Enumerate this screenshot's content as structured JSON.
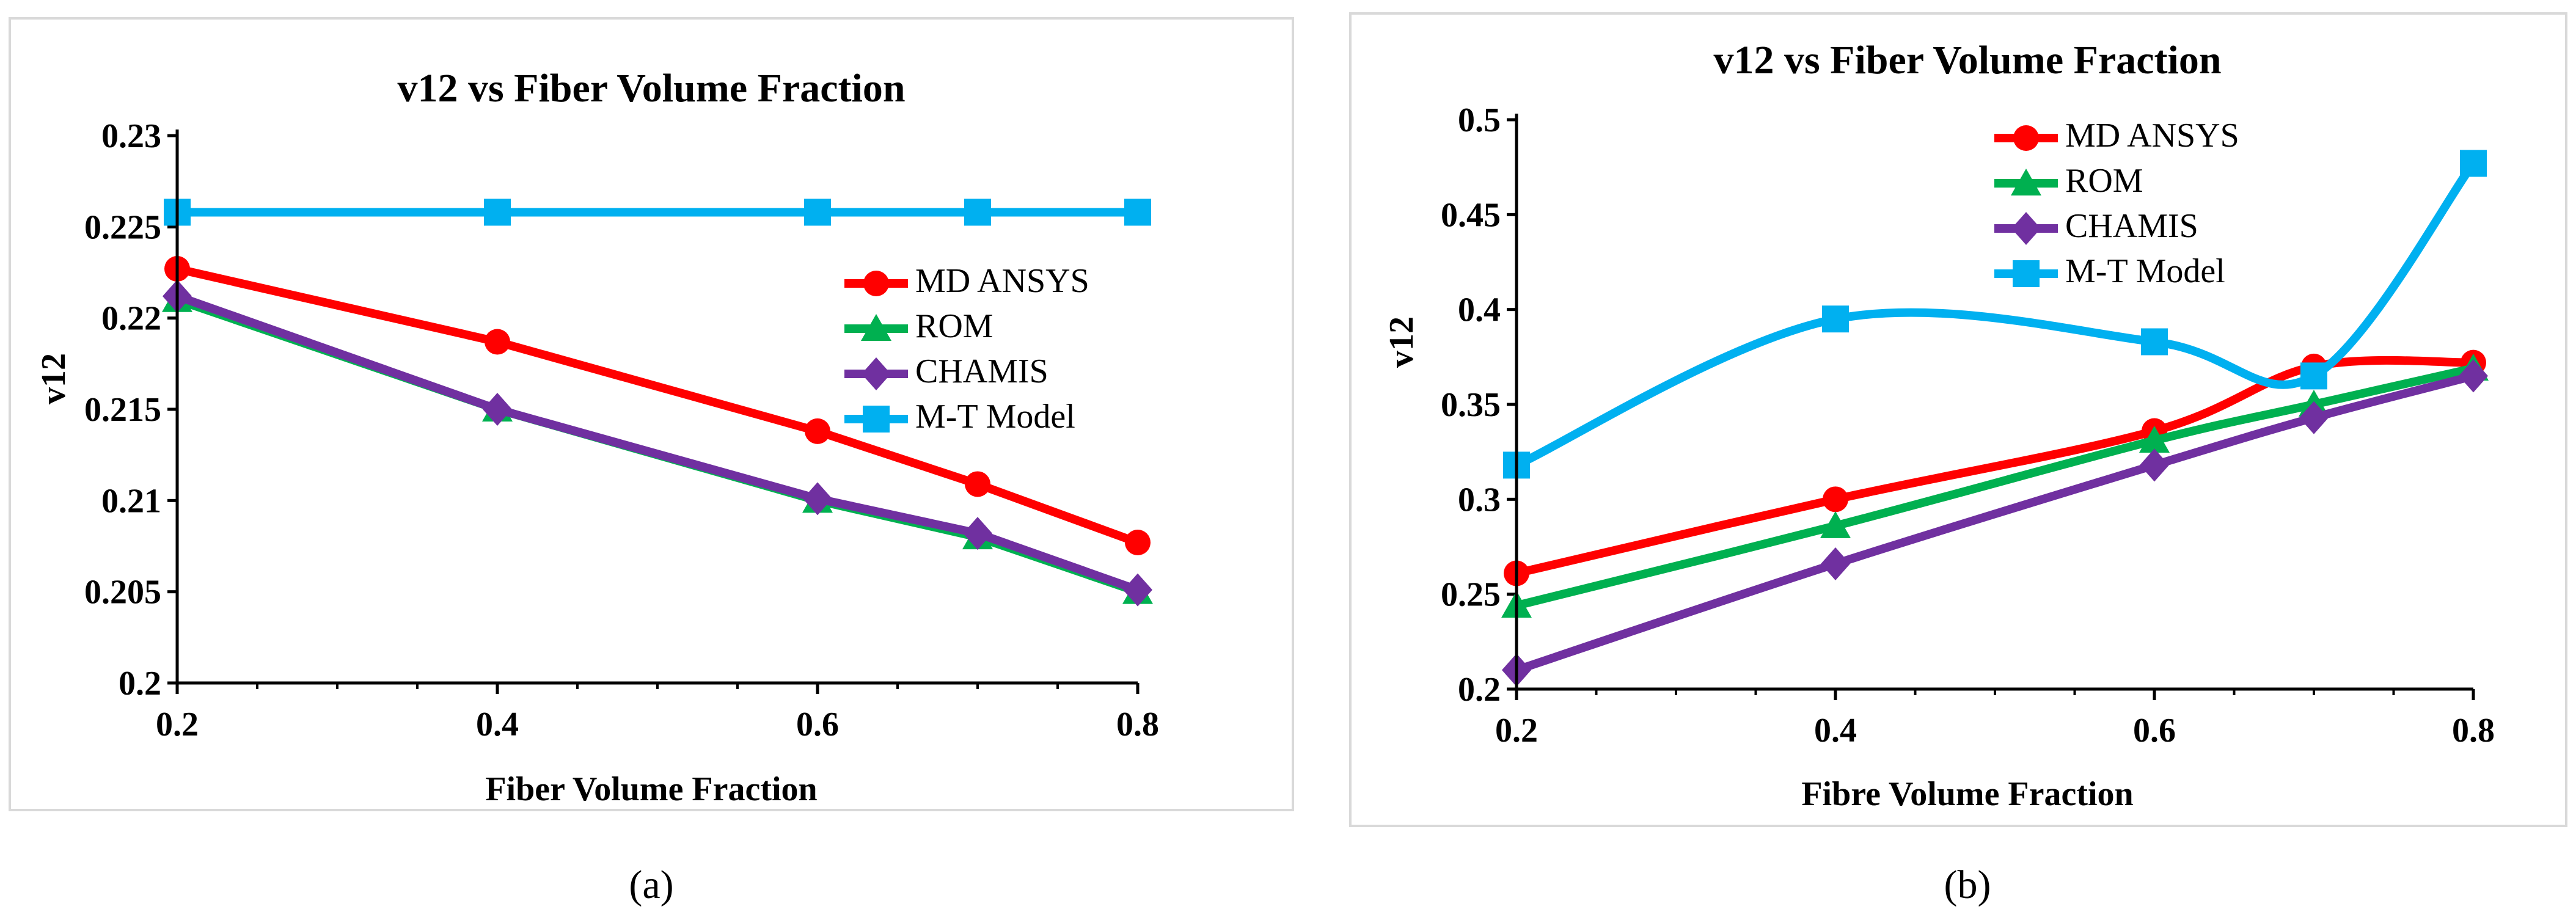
{
  "chart_data": [
    {
      "type": "line",
      "title": "v12 vs Fiber Volume Fraction",
      "xlabel": "Fiber Volume Fraction",
      "ylabel": "v12",
      "xlim": [
        0.2,
        0.8
      ],
      "ylim": [
        0.2,
        0.23
      ],
      "x_ticks": [
        "0.2",
        "0.4",
        "0.6",
        "0.8"
      ],
      "y_ticks": [
        "0.2",
        "0.205",
        "0.21",
        "0.215",
        "0.22",
        "0.225",
        "0.23"
      ],
      "smooth": false,
      "grid": false,
      "legend_position": "right",
      "panel_label": "(a)",
      "series": [
        {
          "name": "MD ANSYS",
          "x": [
            0.2,
            0.4,
            0.6,
            0.7,
            0.8
          ],
          "values": [
            0.2227,
            0.2187,
            0.2138,
            0.2109,
            0.2077
          ],
          "color": "#ff0000",
          "marker": "circle"
        },
        {
          "name": "ROM",
          "x": [
            0.2,
            0.4,
            0.6,
            0.7,
            0.8
          ],
          "values": [
            0.221,
            0.215,
            0.21,
            0.208,
            0.205
          ],
          "color": "#00b050",
          "marker": "triangle"
        },
        {
          "name": "CHAMIS",
          "x": [
            0.2,
            0.4,
            0.6,
            0.7,
            0.8
          ],
          "values": [
            0.2212,
            0.215,
            0.2101,
            0.2082,
            0.2051
          ],
          "color": "#7030a0",
          "marker": "diamond"
        },
        {
          "name": "M-T Model",
          "x": [
            0.2,
            0.4,
            0.6,
            0.7,
            0.8
          ],
          "values": [
            0.2258,
            0.2258,
            0.2258,
            0.2258,
            0.2258
          ],
          "color": "#00b0f0",
          "marker": "square"
        }
      ]
    },
    {
      "type": "line",
      "title": "v12 vs Fiber Volume Fraction",
      "xlabel": "Fibre Volume Fraction",
      "ylabel": "v12",
      "xlim": [
        0.2,
        0.8
      ],
      "ylim": [
        0.2,
        0.5
      ],
      "x_ticks": [
        "0.2",
        "0.4",
        "0.6",
        "0.8"
      ],
      "y_ticks": [
        "0.2",
        "0.25",
        "0.3",
        "0.35",
        "0.4",
        "0.45",
        "0.5"
      ],
      "smooth": true,
      "grid": false,
      "legend_position": "top-right",
      "panel_label": "(b)",
      "series": [
        {
          "name": "MD ANSYS",
          "x": [
            0.2,
            0.4,
            0.6,
            0.7,
            0.8
          ],
          "values": [
            0.261,
            0.3,
            0.336,
            0.37,
            0.372
          ],
          "color": "#ff0000",
          "marker": "circle"
        },
        {
          "name": "ROM",
          "x": [
            0.2,
            0.4,
            0.6,
            0.7,
            0.8
          ],
          "values": [
            0.244,
            0.286,
            0.331,
            0.35,
            0.369
          ],
          "color": "#00b050",
          "marker": "triangle"
        },
        {
          "name": "CHAMIS",
          "x": [
            0.2,
            0.4,
            0.6,
            0.7,
            0.8
          ],
          "values": [
            0.21,
            0.266,
            0.318,
            0.343,
            0.365
          ],
          "color": "#7030a0",
          "marker": "diamond"
        },
        {
          "name": "M-T Model",
          "x": [
            0.2,
            0.4,
            0.6,
            0.7,
            0.8
          ],
          "values": [
            0.318,
            0.395,
            0.383,
            0.365,
            0.477
          ],
          "color": "#00b0f0",
          "marker": "square"
        }
      ]
    }
  ]
}
